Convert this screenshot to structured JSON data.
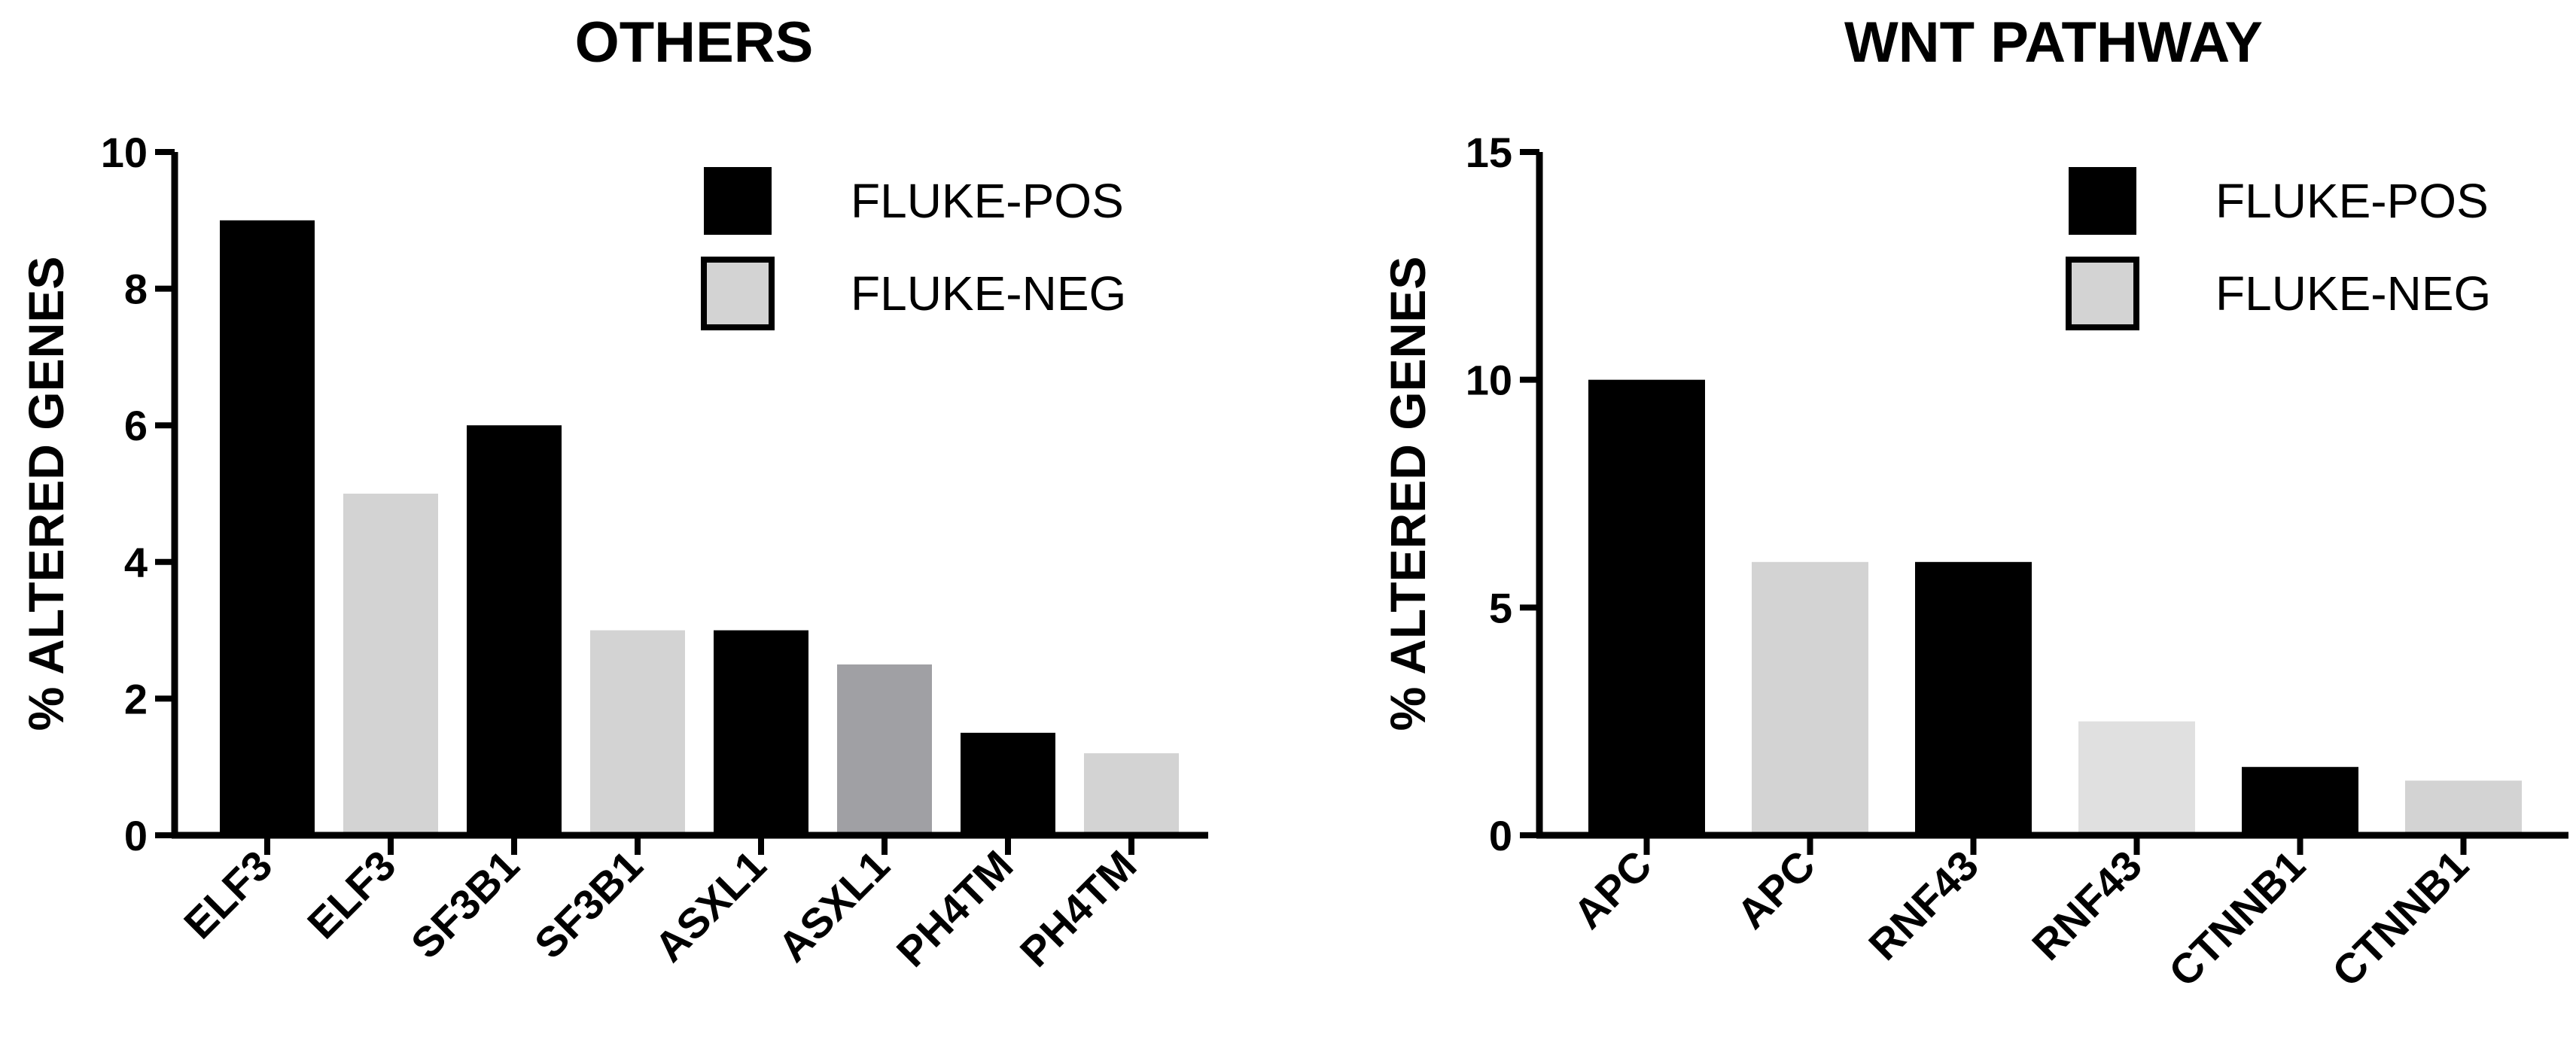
{
  "chart_data": [
    {
      "type": "bar",
      "title": "OTHERS",
      "ylabel": "% ALTERED GENES",
      "xlabel": "",
      "ylim": [
        0,
        10
      ],
      "yticks": [
        0,
        2,
        4,
        6,
        8,
        10
      ],
      "categories": [
        "ELF3",
        "ELF3",
        "SF3B1",
        "SF3B1",
        "ASXL1",
        "ASXL1",
        "PH4TM",
        "PH4TM"
      ],
      "values": [
        9,
        5,
        6,
        3,
        3,
        2.5,
        1.5,
        1.2
      ],
      "bar_colors": [
        "#000000",
        "#d3d3d3",
        "#000000",
        "#d3d3d3",
        "#000000",
        "#a0a0a4",
        "#000000",
        "#d3d3d3"
      ],
      "legend": {
        "placement": "top-right",
        "items": [
          {
            "label": "FLUKE-POS",
            "color": "#000000"
          },
          {
            "label": "FLUKE-NEG",
            "color": "#d3d3d3"
          }
        ]
      },
      "grid": false
    },
    {
      "type": "bar",
      "title": "WNT PATHWAY",
      "ylabel": "% ALTERED GENES",
      "xlabel": "",
      "ylim": [
        0,
        15
      ],
      "yticks": [
        0,
        5,
        10,
        15
      ],
      "categories": [
        "APC",
        "APC",
        "RNF43",
        "RNF43",
        "CTNNB1",
        "CTNNB1"
      ],
      "values": [
        10,
        6,
        6,
        2.5,
        1.5,
        1.2
      ],
      "bar_colors": [
        "#000000",
        "#d3d3d3",
        "#000000",
        "#e0e0e0",
        "#000000",
        "#d3d3d3"
      ],
      "legend": {
        "placement": "top-right",
        "items": [
          {
            "label": "FLUKE-POS",
            "color": "#000000"
          },
          {
            "label": "FLUKE-NEG",
            "color": "#d3d3d3"
          }
        ]
      },
      "grid": false
    }
  ]
}
